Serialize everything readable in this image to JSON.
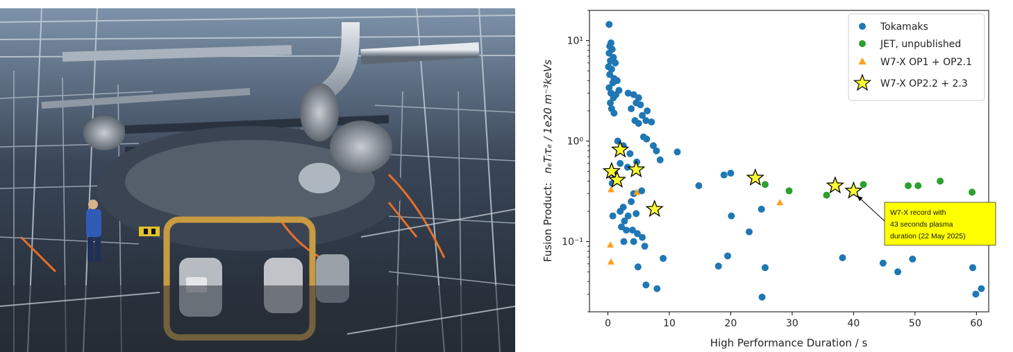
{
  "photo": {
    "description": "Wendelstein 7-X stellarator experiment hall"
  },
  "colors": {
    "tokamaks": "#1f77b4",
    "jet": "#2ca02c",
    "w7x_op1": "#ff9f1a",
    "w7x_op22": "#ffff33",
    "annotation_bg": "#ffff00"
  },
  "chart_data": {
    "type": "scatter",
    "title": "",
    "xlabel": "High Performance Duration / s",
    "ylabel": "Fusion Product:  n_e T_i τ_E  /  1e20 m^-3 keVs",
    "ylabel_plain": "Fusion Product:",
    "ylabel_math": "nₑTᵢτₑ / 1e20 m⁻³keVs",
    "xlim": [
      -3,
      62
    ],
    "ylim": [
      0.02,
      20
    ],
    "yscale": "log",
    "xticks": [
      0,
      10,
      20,
      30,
      40,
      50,
      60
    ],
    "xtick_labels": [
      "0",
      "10",
      "20",
      "30",
      "40",
      "50",
      "60"
    ],
    "yticks": [
      0.1,
      1,
      10
    ],
    "ytick_labels": [
      "10⁻¹",
      "10⁰",
      "10¹"
    ],
    "legend": [
      "Tokamaks",
      "JET, unpublished",
      "W7-X OP1 + OP2.1",
      "W7-X OP2.2 + 2.3"
    ],
    "legend_location": "top-right",
    "series": [
      {
        "name": "Tokamaks",
        "marker": "circle",
        "points": [
          [
            0.2,
            14.5
          ],
          [
            0.5,
            9.5
          ],
          [
            0.3,
            8.8
          ],
          [
            0.7,
            8.2
          ],
          [
            0.2,
            7.5
          ],
          [
            0.9,
            6.8
          ],
          [
            0.4,
            6.3
          ],
          [
            1.2,
            6.0
          ],
          [
            0.1,
            5.5
          ],
          [
            0.6,
            5.2
          ],
          [
            0.3,
            4.6
          ],
          [
            1.0,
            4.2
          ],
          [
            0.8,
            3.8
          ],
          [
            1.5,
            4.0
          ],
          [
            0.2,
            3.4
          ],
          [
            1.8,
            3.2
          ],
          [
            0.5,
            3.0
          ],
          [
            1.3,
            2.9
          ],
          [
            0.9,
            2.7
          ],
          [
            0.4,
            2.4
          ],
          [
            3.3,
            3.0
          ],
          [
            4.2,
            2.9
          ],
          [
            5.0,
            2.7
          ],
          [
            4.6,
            2.4
          ],
          [
            5.3,
            2.3
          ],
          [
            3.8,
            2.1
          ],
          [
            6.4,
            2.0
          ],
          [
            5.6,
            1.8
          ],
          [
            0.6,
            2.1
          ],
          [
            1.0,
            1.9
          ],
          [
            4.4,
            1.6
          ],
          [
            5.0,
            1.5
          ],
          [
            6.2,
            1.6
          ],
          [
            7.1,
            1.55
          ],
          [
            5.8,
            1.1
          ],
          [
            6.3,
            1.05
          ],
          [
            1.6,
            1.0
          ],
          [
            2.5,
            0.9
          ],
          [
            7.4,
            0.9
          ],
          [
            7.9,
            0.8
          ],
          [
            11.3,
            0.78
          ],
          [
            3.6,
            0.75
          ],
          [
            8.5,
            0.65
          ],
          [
            4.7,
            0.62
          ],
          [
            2.0,
            0.6
          ],
          [
            3.2,
            0.55
          ],
          [
            1.2,
            0.45
          ],
          [
            0.7,
            0.38
          ],
          [
            5.5,
            0.32
          ],
          [
            4.2,
            0.3
          ],
          [
            3.8,
            0.25
          ],
          [
            2.5,
            0.22
          ],
          [
            2.0,
            0.2
          ],
          [
            4.6,
            0.19
          ],
          [
            0.8,
            0.18
          ],
          [
            3.3,
            0.18
          ],
          [
            2.7,
            0.16
          ],
          [
            2.2,
            0.14
          ],
          [
            3.0,
            0.13
          ],
          [
            4.0,
            0.13
          ],
          [
            4.8,
            0.12
          ],
          [
            5.6,
            0.11
          ],
          [
            2.6,
            0.1
          ],
          [
            4.2,
            0.1
          ],
          [
            6.0,
            0.09
          ],
          [
            9.0,
            0.068
          ],
          [
            4.9,
            0.056
          ],
          [
            6.2,
            0.037
          ],
          [
            8.0,
            0.034
          ],
          [
            14.8,
            0.36
          ],
          [
            18.9,
            0.46
          ],
          [
            20.0,
            0.48
          ],
          [
            20.1,
            0.18
          ],
          [
            25.0,
            0.21
          ],
          [
            23.0,
            0.125
          ],
          [
            19.5,
            0.072
          ],
          [
            18.0,
            0.057
          ],
          [
            25.6,
            0.055
          ],
          [
            25.1,
            0.028
          ],
          [
            38.2,
            0.069
          ],
          [
            44.8,
            0.061
          ],
          [
            47.2,
            0.05
          ],
          [
            49.6,
            0.067
          ],
          [
            59.4,
            0.055
          ],
          [
            59.9,
            0.03
          ],
          [
            60.8,
            0.034
          ]
        ]
      },
      {
        "name": "JET, unpublished",
        "marker": "circle",
        "points": [
          [
            25.6,
            0.37
          ],
          [
            29.5,
            0.32
          ],
          [
            35.6,
            0.29
          ],
          [
            41.6,
            0.37
          ],
          [
            48.9,
            0.36
          ],
          [
            50.5,
            0.36
          ],
          [
            54.1,
            0.4
          ],
          [
            59.3,
            0.31
          ]
        ]
      },
      {
        "name": "W7-X OP1 + OP2.1",
        "marker": "triangle",
        "points": [
          [
            0.5,
            0.33
          ],
          [
            4.7,
            0.31
          ],
          [
            28.0,
            0.245
          ],
          [
            0.4,
            0.093
          ],
          [
            0.5,
            0.063
          ]
        ]
      },
      {
        "name": "W7-X OP2.2 + 2.3",
        "marker": "star",
        "points": [
          [
            2.0,
            0.82
          ],
          [
            0.6,
            0.5
          ],
          [
            4.6,
            0.52
          ],
          [
            1.5,
            0.41
          ],
          [
            7.6,
            0.21
          ],
          [
            24.0,
            0.43
          ],
          [
            37.0,
            0.36
          ],
          [
            40.0,
            0.32
          ]
        ]
      }
    ],
    "annotation": {
      "lines": [
        "W7-X record with",
        "43 seconds plasma",
        "duration (22 May 2025)"
      ],
      "points_to": [
        40.0,
        0.32
      ]
    }
  }
}
